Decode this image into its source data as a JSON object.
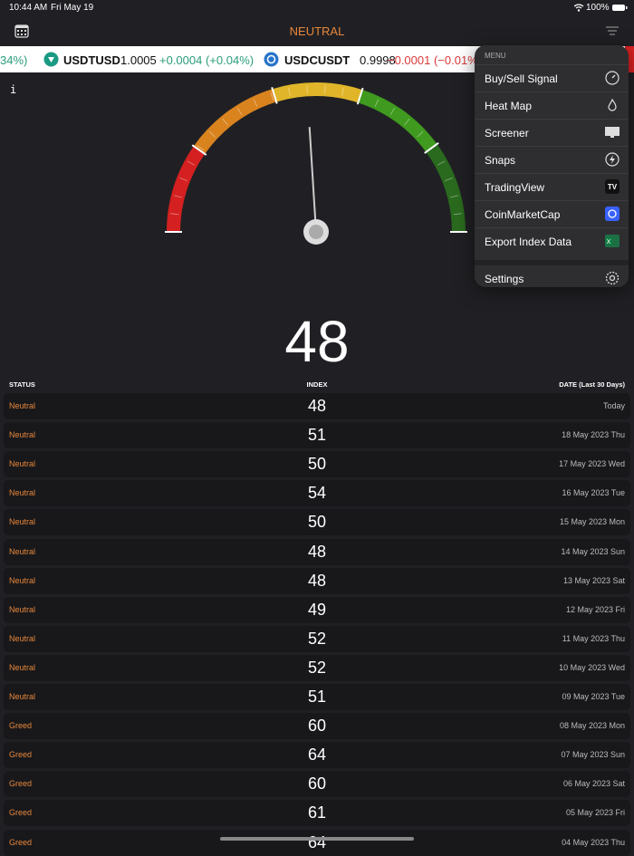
{
  "status_bar": {
    "time": "10:44 AM",
    "date": "Fri May 19",
    "battery": "100%"
  },
  "header": {
    "title": "NEUTRAL"
  },
  "ticker": {
    "leading_fragment": "34%)",
    "items": [
      {
        "symbol": "USDTUSD",
        "price": "1.0005",
        "change": "+0.0004 (+0.04%)"
      },
      {
        "symbol": "USDCUSDT",
        "price": "0.9998",
        "change": "−0.0001 (−0.01%)"
      }
    ]
  },
  "gauge": {
    "info": "i",
    "value": "48"
  },
  "table": {
    "headers": [
      "STATUS",
      "INDEX",
      "DATE (Last 30 Days)"
    ],
    "rows": [
      [
        "Neutral",
        "48",
        "Today"
      ],
      [
        "Neutral",
        "51",
        "18 May 2023 Thu"
      ],
      [
        "Neutral",
        "50",
        "17 May 2023 Wed"
      ],
      [
        "Neutral",
        "54",
        "16 May 2023 Tue"
      ],
      [
        "Neutral",
        "50",
        "15 May 2023 Mon"
      ],
      [
        "Neutral",
        "48",
        "14 May 2023 Sun"
      ],
      [
        "Neutral",
        "48",
        "13 May 2023 Sat"
      ],
      [
        "Neutral",
        "49",
        "12 May 2023 Fri"
      ],
      [
        "Neutral",
        "52",
        "11 May 2023 Thu"
      ],
      [
        "Neutral",
        "52",
        "10 May 2023 Wed"
      ],
      [
        "Neutral",
        "51",
        "09 May 2023 Tue"
      ],
      [
        "Greed",
        "60",
        "08 May 2023 Mon"
      ],
      [
        "Greed",
        "64",
        "07 May 2023 Sun"
      ],
      [
        "Greed",
        "60",
        "06 May 2023 Sat"
      ],
      [
        "Greed",
        "61",
        "05 May 2023 Fri"
      ],
      [
        "Greed",
        "64",
        "04 May 2023 Thu"
      ]
    ]
  },
  "menu": {
    "title": "MENU",
    "items": [
      "Buy/Sell Signal",
      "Heat Map",
      "Screener",
      "Snaps",
      "TradingView",
      "CoinMarketCap",
      "Export Index Data",
      "Settings"
    ]
  }
}
